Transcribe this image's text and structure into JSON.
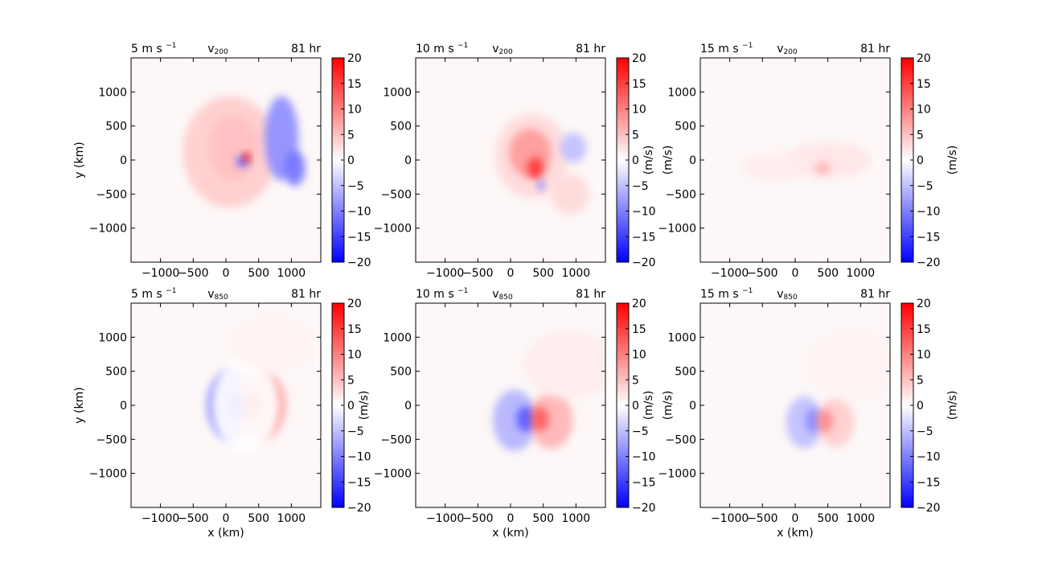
{
  "chart_data": [
    {
      "type": "heatmap",
      "row": 0,
      "col": 0,
      "title_left": "5 m s",
      "title_left_sup": "−1",
      "title_center_var": "v",
      "title_center_sub": "200",
      "title_right": "81 hr",
      "xlabel": "",
      "ylabel": "y (km)",
      "colorbar_label": "",
      "xlim": [
        -1450,
        1450
      ],
      "ylim": [
        -1500,
        1500
      ],
      "xticks": [
        "−1000",
        "−500",
        "0",
        "500",
        "1000"
      ],
      "yticks": [
        "1000",
        "500",
        "0",
        "−500",
        "−1000"
      ],
      "features": [
        {
          "kind": "blob",
          "x": 120,
          "y": 180,
          "rx": 380,
          "ry": 480,
          "value": 14
        },
        {
          "kind": "blob",
          "x": 60,
          "y": 120,
          "rx": 720,
          "ry": 820,
          "value": 4
        },
        {
          "kind": "blob",
          "x": 850,
          "y": 320,
          "rx": 260,
          "ry": 620,
          "value": -9
        },
        {
          "kind": "blob",
          "x": 1050,
          "y": -120,
          "rx": 160,
          "ry": 260,
          "value": -11
        },
        {
          "kind": "blob",
          "x": 250,
          "y": -20,
          "rx": 90,
          "ry": 90,
          "value": -12
        },
        {
          "kind": "blob",
          "x": 320,
          "y": 40,
          "rx": 55,
          "ry": 70,
          "value": 20
        }
      ]
    },
    {
      "type": "heatmap",
      "row": 0,
      "col": 1,
      "title_left": "10 m s",
      "title_left_sup": "−1",
      "title_center_var": "v",
      "title_center_sub": "200",
      "title_right": "81 hr",
      "xlabel": "",
      "ylabel": "",
      "colorbar_label": "(m/s)",
      "xlim": [
        -1450,
        1450
      ],
      "ylim": [
        -1500,
        1500
      ],
      "xticks": [
        "−1000",
        "−500",
        "0",
        "500",
        "1000"
      ],
      "yticks": [
        "1000",
        "500",
        "0",
        "−500",
        "−1000"
      ],
      "features": [
        {
          "kind": "blob",
          "x": 320,
          "y": 60,
          "rx": 560,
          "ry": 620,
          "value": 3
        },
        {
          "kind": "blob",
          "x": 300,
          "y": 100,
          "rx": 320,
          "ry": 360,
          "value": 8
        },
        {
          "kind": "blob",
          "x": 380,
          "y": -120,
          "rx": 120,
          "ry": 160,
          "value": 16
        },
        {
          "kind": "blob",
          "x": 960,
          "y": 180,
          "rx": 200,
          "ry": 220,
          "value": -5
        },
        {
          "kind": "blob",
          "x": 470,
          "y": -370,
          "rx": 60,
          "ry": 80,
          "value": -9
        },
        {
          "kind": "blob",
          "x": 900,
          "y": -500,
          "rx": 300,
          "ry": 300,
          "value": 3
        }
      ]
    },
    {
      "type": "heatmap",
      "row": 0,
      "col": 2,
      "title_left": "15 m s",
      "title_left_sup": "−1",
      "title_center_var": "v",
      "title_center_sub": "200",
      "title_right": "81 hr",
      "xlabel": "",
      "ylabel": "(m/s)",
      "colorbar_label": "(m/s)",
      "xlim": [
        -1450,
        1450
      ],
      "ylim": [
        -1500,
        1500
      ],
      "xticks": [
        "−1000",
        "−500",
        "0",
        "500",
        "1000"
      ],
      "yticks": [
        "1000",
        "500",
        "0",
        "−500",
        "−1000"
      ],
      "features": [
        {
          "kind": "blob",
          "x": 500,
          "y": 0,
          "rx": 650,
          "ry": 260,
          "value": 2
        },
        {
          "kind": "blob",
          "x": 420,
          "y": -120,
          "rx": 120,
          "ry": 90,
          "value": 6
        },
        {
          "kind": "blob",
          "x": -300,
          "y": -100,
          "rx": 500,
          "ry": 200,
          "value": 1.5
        }
      ]
    },
    {
      "type": "heatmap",
      "row": 1,
      "col": 0,
      "title_left": "5 m s",
      "title_left_sup": "−1",
      "title_center_var": "v",
      "title_center_sub": "850",
      "title_right": "81 hr",
      "xlabel": "x (km)",
      "ylabel": "y (km)",
      "colorbar_label": "",
      "xlim": [
        -1450,
        1450
      ],
      "ylim": [
        -1500,
        1500
      ],
      "xticks": [
        "−1000",
        "−500",
        "0",
        "500",
        "1000"
      ],
      "yticks": [
        "1000",
        "500",
        "0",
        "−500",
        "−1000"
      ],
      "features": [
        {
          "kind": "blob",
          "x": 80,
          "y": 0,
          "rx": 380,
          "ry": 520,
          "value": -8
        },
        {
          "kind": "blob",
          "x": 520,
          "y": 0,
          "rx": 400,
          "ry": 520,
          "value": 7
        },
        {
          "kind": "blob",
          "x": 190,
          "y": 0,
          "rx": 140,
          "ry": 200,
          "value": -14
        },
        {
          "kind": "blob",
          "x": 400,
          "y": 0,
          "rx": 140,
          "ry": 200,
          "value": 14
        },
        {
          "kind": "blob",
          "x": 300,
          "y": 0,
          "rx": 500,
          "ry": 700,
          "value": 0
        },
        {
          "kind": "blob",
          "x": 700,
          "y": 900,
          "rx": 600,
          "ry": 400,
          "value": 1
        }
      ]
    },
    {
      "type": "heatmap",
      "row": 1,
      "col": 1,
      "title_left": "10 m s",
      "title_left_sup": "−1",
      "title_center_var": "v",
      "title_center_sub": "850",
      "title_right": "81 hr",
      "xlabel": "x (km)",
      "ylabel": "(m/s)",
      "colorbar_label": "(m/s)",
      "xlim": [
        -1450,
        1450
      ],
      "ylim": [
        -1500,
        1500
      ],
      "xticks": [
        "−1000",
        "−500",
        "0",
        "500",
        "1000"
      ],
      "yticks": [
        "1000",
        "500",
        "0",
        "−500",
        "−1000"
      ],
      "features": [
        {
          "kind": "blob",
          "x": 60,
          "y": -220,
          "rx": 330,
          "ry": 450,
          "value": -6
        },
        {
          "kind": "blob",
          "x": 620,
          "y": -220,
          "rx": 330,
          "ry": 420,
          "value": 6
        },
        {
          "kind": "blob",
          "x": 230,
          "y": -200,
          "rx": 140,
          "ry": 190,
          "value": -13
        },
        {
          "kind": "blob",
          "x": 450,
          "y": -200,
          "rx": 130,
          "ry": 180,
          "value": 13
        },
        {
          "kind": "blob",
          "x": 900,
          "y": 600,
          "rx": 700,
          "ry": 500,
          "value": 1.5
        }
      ]
    },
    {
      "type": "heatmap",
      "row": 1,
      "col": 2,
      "title_left": "15 m s",
      "title_left_sup": "−1",
      "title_center_var": "v",
      "title_center_sub": "850",
      "title_right": "81 hr",
      "xlabel": "x (km)",
      "ylabel": "(m/s)",
      "colorbar_label": "(m/s)",
      "xlim": [
        -1450,
        1450
      ],
      "ylim": [
        -1500,
        1500
      ],
      "xticks": [
        "−1000",
        "−500",
        "0",
        "500",
        "1000"
      ],
      "yticks": [
        "1000",
        "500",
        "0",
        "−500",
        "−1000"
      ],
      "features": [
        {
          "kind": "blob",
          "x": 140,
          "y": -250,
          "rx": 280,
          "ry": 380,
          "value": -5
        },
        {
          "kind": "blob",
          "x": 620,
          "y": -250,
          "rx": 280,
          "ry": 360,
          "value": 4
        },
        {
          "kind": "blob",
          "x": 280,
          "y": -230,
          "rx": 130,
          "ry": 180,
          "value": -9
        },
        {
          "kind": "blob",
          "x": 460,
          "y": -230,
          "rx": 120,
          "ry": 170,
          "value": 9
        },
        {
          "kind": "blob",
          "x": 900,
          "y": 600,
          "rx": 700,
          "ry": 500,
          "value": 1
        }
      ]
    }
  ],
  "colorbar": {
    "vmin": -20,
    "vmax": 20,
    "ticks": [
      "20",
      "15",
      "10",
      "5",
      "0",
      "−5",
      "−10",
      "−15",
      "−20"
    ],
    "colormap": "bwr",
    "colors": {
      "low": "#0000ff",
      "mid": "#ffffff",
      "high": "#ff0000"
    }
  }
}
